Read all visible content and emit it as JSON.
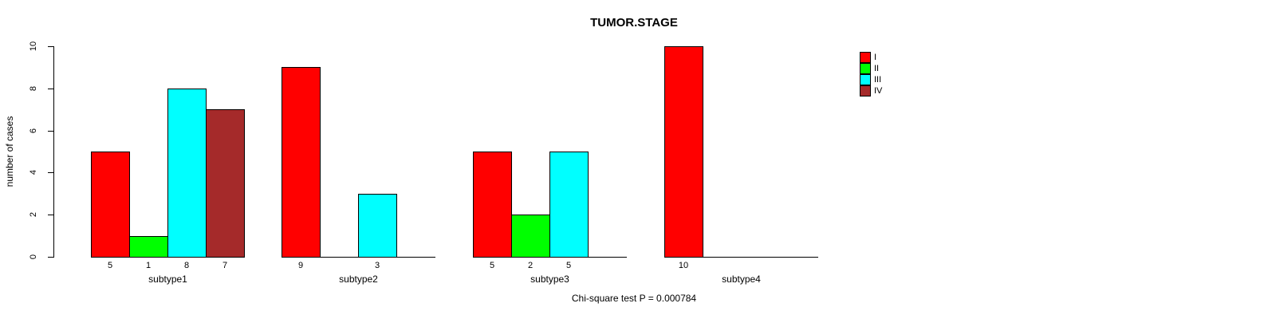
{
  "chart_data": {
    "type": "bar",
    "title": "TUMOR.STAGE",
    "subtitle": "Chi-square test P = 0.000784",
    "ylabel": "number of cases",
    "xlabel": "",
    "categories": [
      "subtype1",
      "subtype2",
      "subtype3",
      "subtype4"
    ],
    "series": [
      {
        "name": "I",
        "color": "#FF0000",
        "values": [
          5,
          9,
          5,
          10
        ]
      },
      {
        "name": "II",
        "color": "#00FF00",
        "values": [
          1,
          0,
          2,
          0
        ]
      },
      {
        "name": "III",
        "color": "#00FFFF",
        "values": [
          8,
          3,
          5,
          0
        ]
      },
      {
        "name": "IV",
        "color": "#A52A2A",
        "values": [
          7,
          0,
          0,
          0
        ]
      }
    ],
    "bar_value_labels": {
      "show": true,
      "hide_zero": true
    },
    "ylim": [
      0,
      10
    ],
    "yticks": [
      0,
      2,
      4,
      6,
      8,
      10
    ],
    "legend": {
      "position": "right",
      "labels": [
        "I",
        "II",
        "III",
        "IV"
      ]
    },
    "grid": false,
    "axis_color": "#000000",
    "text_color": "#000000",
    "background": "#FFFFFF"
  }
}
